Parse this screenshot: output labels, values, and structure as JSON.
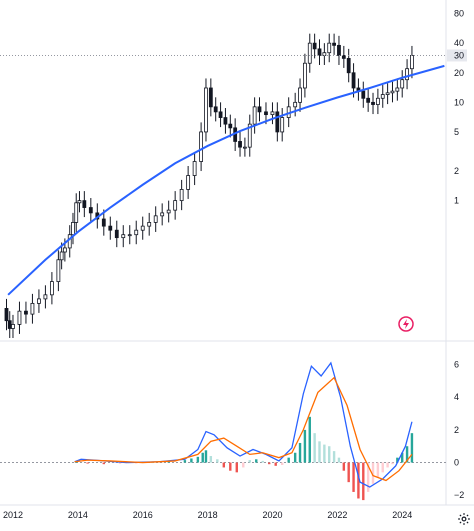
{
  "chart_data": [
    {
      "type": "candlestick",
      "scale": "log",
      "y_ticks": [
        1,
        2,
        5,
        10,
        20,
        30,
        40,
        80
      ],
      "y_tick_labels": [
        "1",
        "2",
        "5",
        "10",
        "20",
        "30",
        "40",
        "80"
      ],
      "last_price_label": "30",
      "x_ticks": [
        "2012",
        "2014",
        "2016",
        "2018",
        "2020",
        "2022",
        "2024"
      ],
      "x_tick_values": [
        2012,
        2014,
        2016,
        2018,
        2020,
        2022,
        2024
      ],
      "ylim": [
        0.04,
        110
      ],
      "xlim": [
        2011.6,
        2025.35
      ],
      "candle_closes": [
        {
          "t": 2011.7,
          "v": 0.08
        },
        {
          "t": 2011.8,
          "v": 0.06
        },
        {
          "t": 2011.9,
          "v": 0.05
        },
        {
          "t": 2012.0,
          "v": 0.055
        },
        {
          "t": 2012.2,
          "v": 0.075
        },
        {
          "t": 2012.4,
          "v": 0.07
        },
        {
          "t": 2012.6,
          "v": 0.09
        },
        {
          "t": 2012.8,
          "v": 0.1
        },
        {
          "t": 2013.0,
          "v": 0.11
        },
        {
          "t": 2013.2,
          "v": 0.15
        },
        {
          "t": 2013.4,
          "v": 0.25
        },
        {
          "t": 2013.5,
          "v": 0.3
        },
        {
          "t": 2013.6,
          "v": 0.33
        },
        {
          "t": 2013.75,
          "v": 0.45
        },
        {
          "t": 2013.85,
          "v": 0.6
        },
        {
          "t": 2013.95,
          "v": 0.95
        },
        {
          "t": 2014.05,
          "v": 1.0
        },
        {
          "t": 2014.2,
          "v": 0.85
        },
        {
          "t": 2014.4,
          "v": 0.75
        },
        {
          "t": 2014.6,
          "v": 0.65
        },
        {
          "t": 2014.8,
          "v": 0.55
        },
        {
          "t": 2015.0,
          "v": 0.5
        },
        {
          "t": 2015.2,
          "v": 0.42
        },
        {
          "t": 2015.4,
          "v": 0.45
        },
        {
          "t": 2015.6,
          "v": 0.45
        },
        {
          "t": 2015.8,
          "v": 0.5
        },
        {
          "t": 2016.0,
          "v": 0.55
        },
        {
          "t": 2016.2,
          "v": 0.6
        },
        {
          "t": 2016.4,
          "v": 0.7
        },
        {
          "t": 2016.6,
          "v": 0.75
        },
        {
          "t": 2016.8,
          "v": 0.8
        },
        {
          "t": 2017.0,
          "v": 1.0
        },
        {
          "t": 2017.2,
          "v": 1.3
        },
        {
          "t": 2017.4,
          "v": 1.8
        },
        {
          "t": 2017.6,
          "v": 2.5
        },
        {
          "t": 2017.8,
          "v": 5.0
        },
        {
          "t": 2017.95,
          "v": 14.0
        },
        {
          "t": 2018.1,
          "v": 9.0
        },
        {
          "t": 2018.25,
          "v": 8.0
        },
        {
          "t": 2018.4,
          "v": 7.0
        },
        {
          "t": 2018.55,
          "v": 6.0
        },
        {
          "t": 2018.7,
          "v": 5.5
        },
        {
          "t": 2018.85,
          "v": 4.0
        },
        {
          "t": 2019.0,
          "v": 3.5
        },
        {
          "t": 2019.15,
          "v": 3.5
        },
        {
          "t": 2019.3,
          "v": 6.0
        },
        {
          "t": 2019.45,
          "v": 9.0
        },
        {
          "t": 2019.6,
          "v": 8.0
        },
        {
          "t": 2019.8,
          "v": 7.5
        },
        {
          "t": 2020.0,
          "v": 8.0
        },
        {
          "t": 2020.15,
          "v": 5.0
        },
        {
          "t": 2020.3,
          "v": 7.0
        },
        {
          "t": 2020.5,
          "v": 9.0
        },
        {
          "t": 2020.7,
          "v": 10.0
        },
        {
          "t": 2020.85,
          "v": 14.0
        },
        {
          "t": 2021.0,
          "v": 25.0
        },
        {
          "t": 2021.15,
          "v": 40.0
        },
        {
          "t": 2021.3,
          "v": 35.0
        },
        {
          "t": 2021.45,
          "v": 30.0
        },
        {
          "t": 2021.6,
          "v": 32.0
        },
        {
          "t": 2021.75,
          "v": 40.0
        },
        {
          "t": 2021.9,
          "v": 38.0
        },
        {
          "t": 2022.05,
          "v": 30.0
        },
        {
          "t": 2022.2,
          "v": 28.0
        },
        {
          "t": 2022.35,
          "v": 20.0
        },
        {
          "t": 2022.5,
          "v": 14.0
        },
        {
          "t": 2022.65,
          "v": 13.0
        },
        {
          "t": 2022.8,
          "v": 11.0
        },
        {
          "t": 2022.95,
          "v": 10.0
        },
        {
          "t": 2023.1,
          "v": 9.5
        },
        {
          "t": 2023.25,
          "v": 11.0
        },
        {
          "t": 2023.4,
          "v": 12.0
        },
        {
          "t": 2023.55,
          "v": 12.5
        },
        {
          "t": 2023.7,
          "v": 13.0
        },
        {
          "t": 2023.85,
          "v": 14.0
        },
        {
          "t": 2024.0,
          "v": 17.0
        },
        {
          "t": 2024.15,
          "v": 22.0
        },
        {
          "t": 2024.3,
          "v": 30.0
        }
      ],
      "trend_line": [
        {
          "t": 2011.85,
          "v": 0.11
        },
        {
          "t": 2013.0,
          "v": 0.25
        },
        {
          "t": 2014.0,
          "v": 0.48
        },
        {
          "t": 2015.0,
          "v": 0.85
        },
        {
          "t": 2016.0,
          "v": 1.45
        },
        {
          "t": 2017.0,
          "v": 2.4
        },
        {
          "t": 2018.0,
          "v": 3.6
        },
        {
          "t": 2019.0,
          "v": 5.1
        },
        {
          "t": 2020.0,
          "v": 6.8
        },
        {
          "t": 2021.0,
          "v": 8.8
        },
        {
          "t": 2022.0,
          "v": 11.2
        },
        {
          "t": 2023.0,
          "v": 14.0
        },
        {
          "t": 2024.0,
          "v": 17.8
        },
        {
          "t": 2025.3,
          "v": 23.5
        }
      ],
      "colors": {
        "candle": "#131722",
        "trend": "#2962ff"
      }
    },
    {
      "type": "macd",
      "y_ticks": [
        -2,
        0,
        2,
        4,
        6
      ],
      "y_tick_labels": [
        "−2",
        "0",
        "2",
        "4",
        "6"
      ],
      "ylim": [
        -2.6,
        7.2
      ],
      "macd_line": [
        {
          "t": 2013.9,
          "v": 0.05
        },
        {
          "t": 2014.1,
          "v": 0.2
        },
        {
          "t": 2014.5,
          "v": 0.15
        },
        {
          "t": 2015.5,
          "v": 0.0
        },
        {
          "t": 2016.5,
          "v": 0.05
        },
        {
          "t": 2017.3,
          "v": 0.2
        },
        {
          "t": 2017.7,
          "v": 0.8
        },
        {
          "t": 2017.95,
          "v": 1.9
        },
        {
          "t": 2018.2,
          "v": 1.7
        },
        {
          "t": 2018.6,
          "v": 0.9
        },
        {
          "t": 2019.0,
          "v": 0.4
        },
        {
          "t": 2019.4,
          "v": 0.8
        },
        {
          "t": 2019.8,
          "v": 0.5
        },
        {
          "t": 2020.2,
          "v": 0.1
        },
        {
          "t": 2020.6,
          "v": 0.9
        },
        {
          "t": 2020.95,
          "v": 4.2
        },
        {
          "t": 2021.2,
          "v": 5.9
        },
        {
          "t": 2021.5,
          "v": 5.3
        },
        {
          "t": 2021.8,
          "v": 6.1
        },
        {
          "t": 2022.1,
          "v": 4.0
        },
        {
          "t": 2022.4,
          "v": 1.0
        },
        {
          "t": 2022.7,
          "v": -1.2
        },
        {
          "t": 2023.0,
          "v": -1.5
        },
        {
          "t": 2023.4,
          "v": -1.0
        },
        {
          "t": 2023.8,
          "v": -0.2
        },
        {
          "t": 2024.1,
          "v": 1.0
        },
        {
          "t": 2024.3,
          "v": 2.5
        }
      ],
      "signal_line": [
        {
          "t": 2013.9,
          "v": 0.05
        },
        {
          "t": 2014.3,
          "v": 0.15
        },
        {
          "t": 2015.0,
          "v": 0.1
        },
        {
          "t": 2016.0,
          "v": 0.0
        },
        {
          "t": 2017.0,
          "v": 0.1
        },
        {
          "t": 2017.7,
          "v": 0.5
        },
        {
          "t": 2018.1,
          "v": 1.3
        },
        {
          "t": 2018.5,
          "v": 1.5
        },
        {
          "t": 2018.9,
          "v": 1.0
        },
        {
          "t": 2019.3,
          "v": 0.5
        },
        {
          "t": 2019.7,
          "v": 0.6
        },
        {
          "t": 2020.2,
          "v": 0.3
        },
        {
          "t": 2020.6,
          "v": 0.6
        },
        {
          "t": 2020.95,
          "v": 2.0
        },
        {
          "t": 2021.4,
          "v": 4.3
        },
        {
          "t": 2021.9,
          "v": 5.2
        },
        {
          "t": 2022.3,
          "v": 3.5
        },
        {
          "t": 2022.7,
          "v": 0.8
        },
        {
          "t": 2023.1,
          "v": -0.8
        },
        {
          "t": 2023.5,
          "v": -1.1
        },
        {
          "t": 2023.9,
          "v": -0.5
        },
        {
          "t": 2024.3,
          "v": 0.5
        }
      ],
      "histogram": [
        {
          "t": 2013.95,
          "v": 0.05
        },
        {
          "t": 2014.3,
          "v": -0.05
        },
        {
          "t": 2014.8,
          "v": -0.1
        },
        {
          "t": 2015.3,
          "v": -0.08
        },
        {
          "t": 2015.8,
          "v": -0.05
        },
        {
          "t": 2016.3,
          "v": 0.03
        },
        {
          "t": 2016.8,
          "v": 0.08
        },
        {
          "t": 2017.3,
          "v": 0.15
        },
        {
          "t": 2017.5,
          "v": 0.25
        },
        {
          "t": 2017.7,
          "v": 0.35
        },
        {
          "t": 2017.85,
          "v": 0.6
        },
        {
          "t": 2017.95,
          "v": 0.75
        },
        {
          "t": 2018.1,
          "v": 0.4
        },
        {
          "t": 2018.3,
          "v": 0.2
        },
        {
          "t": 2018.5,
          "v": -0.3
        },
        {
          "t": 2018.7,
          "v": -0.5
        },
        {
          "t": 2018.9,
          "v": -0.6
        },
        {
          "t": 2019.1,
          "v": -0.3
        },
        {
          "t": 2019.3,
          "v": 0.15
        },
        {
          "t": 2019.5,
          "v": 0.2
        },
        {
          "t": 2019.7,
          "v": 0.1
        },
        {
          "t": 2019.9,
          "v": -0.1
        },
        {
          "t": 2020.1,
          "v": -0.2
        },
        {
          "t": 2020.3,
          "v": -0.15
        },
        {
          "t": 2020.5,
          "v": 0.3
        },
        {
          "t": 2020.7,
          "v": 0.6
        },
        {
          "t": 2020.85,
          "v": 1.2
        },
        {
          "t": 2021.0,
          "v": 2.0
        },
        {
          "t": 2021.15,
          "v": 2.8
        },
        {
          "t": 2021.3,
          "v": 1.8
        },
        {
          "t": 2021.45,
          "v": 1.3
        },
        {
          "t": 2021.6,
          "v": 1.1
        },
        {
          "t": 2021.75,
          "v": 1.0
        },
        {
          "t": 2021.9,
          "v": 0.7
        },
        {
          "t": 2022.05,
          "v": 0.3
        },
        {
          "t": 2022.2,
          "v": -0.5
        },
        {
          "t": 2022.35,
          "v": -1.2
        },
        {
          "t": 2022.5,
          "v": -1.8
        },
        {
          "t": 2022.65,
          "v": -2.2
        },
        {
          "t": 2022.8,
          "v": -2.3
        },
        {
          "t": 2022.95,
          "v": -1.8
        },
        {
          "t": 2023.1,
          "v": -1.3
        },
        {
          "t": 2023.25,
          "v": -0.9
        },
        {
          "t": 2023.4,
          "v": -0.6
        },
        {
          "t": 2023.55,
          "v": -0.3
        },
        {
          "t": 2023.7,
          "v": -0.1
        },
        {
          "t": 2023.85,
          "v": 0.3
        },
        {
          "t": 2024.0,
          "v": 0.6
        },
        {
          "t": 2024.15,
          "v": 1.0
        },
        {
          "t": 2024.3,
          "v": 1.8
        }
      ],
      "colors": {
        "macd": "#2962ff",
        "signal": "#ff6d00",
        "hist_pos_strong": "#26a69a",
        "hist_pos_weak": "#b2dfdb",
        "hist_neg_strong": "#ef5350",
        "hist_neg_weak": "#ffcdd2"
      }
    }
  ],
  "icons": {
    "logo": "lightning-logo-icon",
    "settings": "gear-icon"
  },
  "colors": {
    "grid": "#e0e3eb",
    "text": "#131722",
    "last_price_bg": "#e6e8ee",
    "logo": "#e91e63"
  }
}
